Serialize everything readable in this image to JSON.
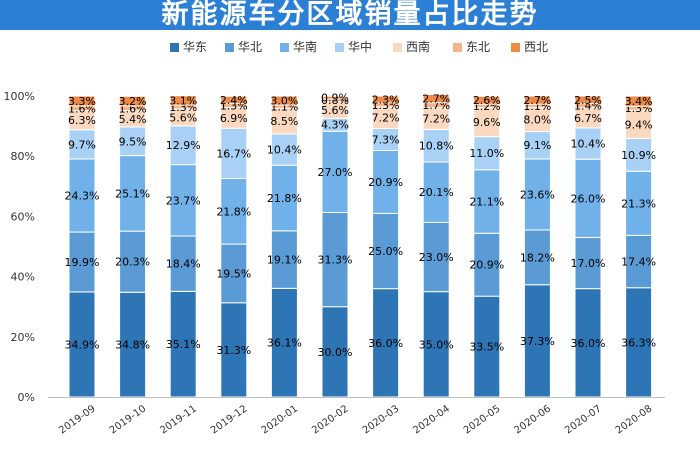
{
  "chart_data": {
    "type": "bar",
    "stacked": true,
    "title": "新能源车分区域销量占比走势",
    "xlabel": "",
    "ylabel": "",
    "ylim": [
      0,
      100
    ],
    "y_ticks": [
      "0%",
      "20%",
      "40%",
      "60%",
      "80%",
      "100%"
    ],
    "legend_position": "top",
    "categories": [
      "2019-09",
      "2019-10",
      "2019-11",
      "2019-12",
      "2020-01",
      "2020-02",
      "2020-03",
      "2020-04",
      "2020-05",
      "2020-06",
      "2020-07",
      "2020-08"
    ],
    "series": [
      {
        "name": "华东",
        "color": "#2e75b6",
        "values": [
          34.9,
          34.8,
          35.1,
          31.3,
          36.1,
          30.0,
          36.0,
          35.0,
          33.5,
          37.3,
          36.0,
          36.3
        ],
        "labels": [
          "34.9%",
          "34.8%",
          "35.1%",
          "31.3%",
          "36.1%",
          "30.0%",
          "36.0%",
          "35.0%",
          "33.5%",
          "37.3%",
          "36.0%",
          "36.3%"
        ]
      },
      {
        "name": "华北",
        "color": "#5b9bd5",
        "values": [
          19.9,
          20.3,
          18.4,
          19.5,
          19.1,
          31.3,
          25.0,
          23.0,
          20.9,
          18.2,
          17.0,
          17.4
        ],
        "labels": [
          "19.9%",
          "20.3%",
          "18.4%",
          "19.5%",
          "19.1%",
          "31.3%",
          "25.0%",
          "23.0%",
          "20.9%",
          "18.2%",
          "17.0%",
          "17.4%"
        ]
      },
      {
        "name": "华南",
        "color": "#71b1ea",
        "values": [
          24.3,
          25.1,
          23.7,
          21.8,
          21.8,
          27.0,
          20.9,
          20.1,
          21.1,
          23.6,
          26.0,
          21.3
        ],
        "labels": [
          "24.3%",
          "25.1%",
          "23.7%",
          "21.8%",
          "21.8%",
          "27.0%",
          "20.9%",
          "20.1%",
          "21.1%",
          "23.6%",
          "26.0%",
          "21.3%"
        ]
      },
      {
        "name": "华中",
        "color": "#a9d1f5",
        "values": [
          9.7,
          9.5,
          12.9,
          16.7,
          10.4,
          4.3,
          7.3,
          10.8,
          11.0,
          9.1,
          10.4,
          10.9
        ],
        "labels": [
          "9.7%",
          "9.5%",
          "12.9%",
          "16.7%",
          "10.4%",
          "4.3%",
          "7.3%",
          "10.8%",
          "11.0%",
          "9.1%",
          "10.4%",
          "10.9%"
        ]
      },
      {
        "name": "西南",
        "color": "#fbd9c1",
        "values": [
          6.3,
          5.4,
          5.6,
          6.9,
          8.5,
          5.6,
          7.2,
          7.2,
          9.6,
          8.0,
          6.7,
          9.4
        ],
        "labels": [
          "6.3%",
          "5.4%",
          "5.6%",
          "6.9%",
          "8.5%",
          "5.6%",
          "7.2%",
          "7.2%",
          "9.6%",
          "8.0%",
          "6.7%",
          "9.4%"
        ]
      },
      {
        "name": "东北",
        "color": "#f5b389",
        "values": [
          1.6,
          1.6,
          1.3,
          1.3,
          1.1,
          0.8,
          1.3,
          1.7,
          1.2,
          1.1,
          1.4,
          1.3
        ],
        "labels": [
          "1.6%",
          "1.6%",
          "1.3%",
          "1.3%",
          "1.1%",
          "0.8%",
          "1.3%",
          "1.7%",
          "1.2%",
          "1.1%",
          "1.4%",
          "1.3%"
        ]
      },
      {
        "name": "西北",
        "color": "#ec8a46",
        "values": [
          3.3,
          3.2,
          3.1,
          2.4,
          3.0,
          0.9,
          2.3,
          2.7,
          2.6,
          2.7,
          2.5,
          3.4
        ],
        "labels": [
          "3.3%",
          "3.2%",
          "3.1%",
          "2.4%",
          "3.0%",
          "0.9%",
          "2.3%",
          "2.7%",
          "2.6%",
          "2.7%",
          "2.5%",
          "3.4%"
        ]
      }
    ]
  }
}
